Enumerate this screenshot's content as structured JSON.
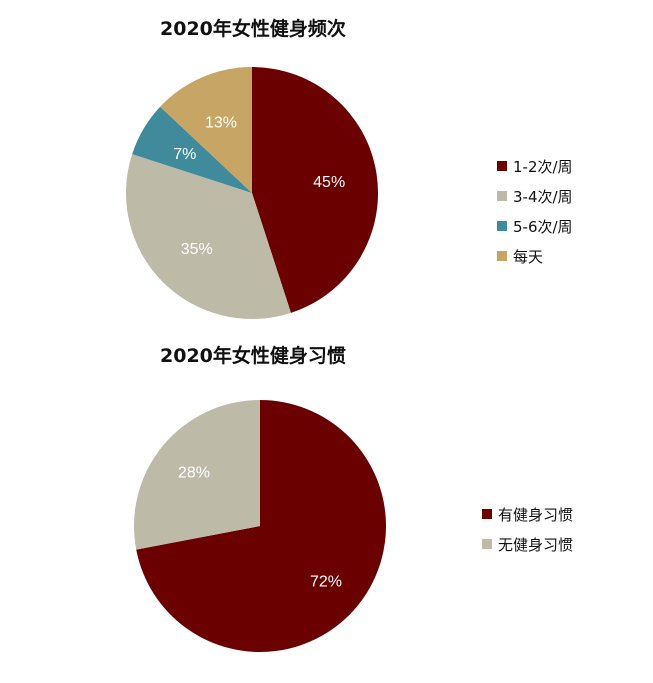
{
  "chart_data": [
    {
      "type": "pie",
      "title": "2020年女性健身频次",
      "categories": [
        "1-2次/周",
        "3-4次/周",
        "5-6次/周",
        "每天"
      ],
      "values": [
        45,
        35,
        7,
        13
      ],
      "labels": [
        "45%",
        "35%",
        "7%",
        "13%"
      ],
      "colors": [
        "#6b0000",
        "#bdbaa8",
        "#3f8a9b",
        "#c6a565"
      ],
      "legend_position": "right"
    },
    {
      "type": "pie",
      "title": "2020年女性健身习惯",
      "categories": [
        "有健身习惯",
        "无健身习惯"
      ],
      "values": [
        72,
        28
      ],
      "labels": [
        "72%",
        "28%"
      ],
      "colors": [
        "#6b0000",
        "#bdbaa8"
      ],
      "legend_position": "right"
    }
  ]
}
